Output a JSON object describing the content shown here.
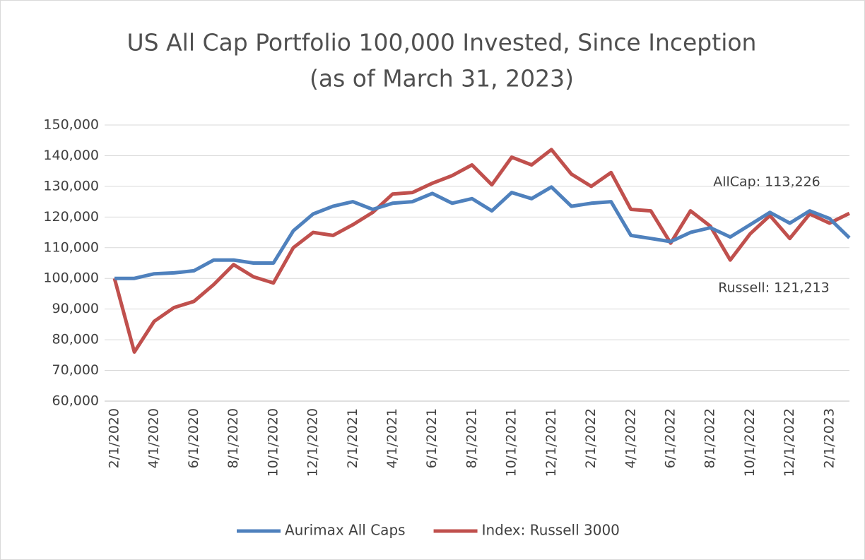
{
  "chart_data": {
    "type": "line",
    "title": "US All Cap Portfolio 100,000 Invested, Since Inception",
    "subtitle": "(as of March 31, 2023)",
    "categories": [
      "2/1/2020",
      null,
      "4/1/2020",
      null,
      "6/1/2020",
      null,
      "8/1/2020",
      null,
      "10/1/2020",
      null,
      "12/1/2020",
      null,
      "2/1/2021",
      null,
      "4/1/2021",
      null,
      "6/1/2021",
      null,
      "8/1/2021",
      null,
      "10/1/2021",
      null,
      "12/1/2021",
      null,
      "2/1/2022",
      null,
      "4/1/2022",
      null,
      "6/1/2022",
      null,
      "8/1/2022",
      null,
      "10/1/2022",
      null,
      "12/1/2022",
      null,
      "2/1/2023",
      null
    ],
    "series": [
      {
        "name": "Aurimax All Caps",
        "color": "#4f81bd",
        "values": [
          100000,
          100000,
          101500,
          101800,
          102500,
          106000,
          106000,
          105000,
          105000,
          115500,
          121000,
          123500,
          125000,
          122500,
          124500,
          125000,
          127700,
          124500,
          126000,
          122000,
          128000,
          126000,
          129800,
          123500,
          124500,
          125000,
          114000,
          113000,
          112000,
          115000,
          116500,
          113500,
          117500,
          121500,
          118000,
          122000,
          119500,
          113226
        ]
      },
      {
        "name": "Index: Russell 3000",
        "color": "#c0504d",
        "values": [
          100000,
          76000,
          86000,
          90500,
          92500,
          98000,
          104500,
          100500,
          98500,
          110000,
          115000,
          114000,
          117500,
          121500,
          127500,
          128000,
          131000,
          133500,
          137000,
          130500,
          139500,
          137000,
          142000,
          134000,
          130000,
          134500,
          122500,
          122000,
          111500,
          122000,
          117000,
          106000,
          114500,
          120500,
          113000,
          121000,
          118000,
          121213
        ]
      }
    ],
    "annotations": [
      "AllCap: 113,226",
      "Russell: 121,213"
    ],
    "ylim": [
      60000,
      150000
    ],
    "yticks": [
      {
        "value": 60000,
        "label": "60,000"
      },
      {
        "value": 70000,
        "label": "70,000"
      },
      {
        "value": 80000,
        "label": "80,000"
      },
      {
        "value": 90000,
        "label": "90,000"
      },
      {
        "value": 100000,
        "label": "100,000"
      },
      {
        "value": 110000,
        "label": "110,000"
      },
      {
        "value": 120000,
        "label": "120,000"
      },
      {
        "value": 130000,
        "label": "130,000"
      },
      {
        "value": 140000,
        "label": "140,000"
      },
      {
        "value": 150000,
        "label": "150,000"
      }
    ],
    "grid": true,
    "legend": "bottom"
  }
}
